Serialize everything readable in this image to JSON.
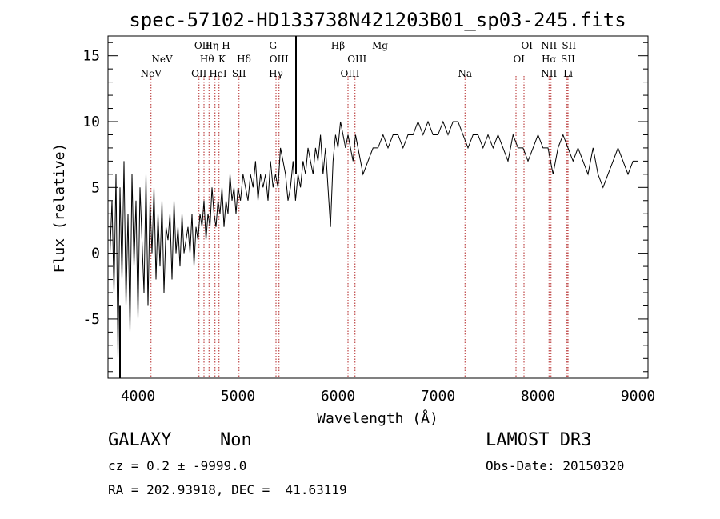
{
  "chart_data": {
    "type": "line",
    "title": "spec-57102-HD133738N421203B01_sp03-245.fits",
    "xlabel": "Wavelength (Å)",
    "ylabel": "Flux (relative)",
    "xlim": [
      3700,
      9100
    ],
    "ylim": [
      -9.5,
      16.5
    ],
    "x_ticks": [
      4000,
      5000,
      6000,
      7000,
      8000,
      9000
    ],
    "y_ticks": [
      -5,
      0,
      5,
      10,
      15
    ],
    "series": [
      {
        "x": [
          3720,
          3740,
          3760,
          3780,
          3800,
          3820,
          3840,
          3860,
          3880,
          3900,
          3920,
          3940,
          3960,
          3980,
          4000,
          4020,
          4040,
          4060,
          4080,
          4100,
          4120,
          4140,
          4160,
          4180,
          4200,
          4220,
          4240,
          4260,
          4280,
          4300,
          4320,
          4340,
          4360,
          4380,
          4400,
          4420,
          4440,
          4460,
          4480,
          4500,
          4520,
          4540,
          4560,
          4580,
          4600,
          4620,
          4640,
          4660,
          4680,
          4700,
          4720,
          4740,
          4760,
          4780,
          4800,
          4820,
          4840,
          4860,
          4880,
          4900,
          4920,
          4940,
          4960,
          4980,
          5000,
          5025,
          5050,
          5075,
          5100,
          5125,
          5150,
          5175,
          5200,
          5225,
          5250,
          5275,
          5300,
          5325,
          5350,
          5375,
          5400,
          5425,
          5450,
          5475,
          5500,
          5525,
          5550,
          5575,
          5600,
          5625,
          5650,
          5675,
          5700,
          5725,
          5750,
          5775,
          5800,
          5825,
          5850,
          5875,
          5900,
          5925,
          5950,
          5975,
          6000,
          6025,
          6050,
          6075,
          6100,
          6125,
          6150,
          6175,
          6200,
          6250,
          6300,
          6350,
          6400,
          6450,
          6500,
          6550,
          6600,
          6650,
          6700,
          6750,
          6800,
          6850,
          6900,
          6950,
          7000,
          7050,
          7100,
          7150,
          7200,
          7250,
          7300,
          7350,
          7400,
          7450,
          7500,
          7550,
          7600,
          7650,
          7700,
          7750,
          7800,
          7850,
          7900,
          7950,
          8000,
          8050,
          8100,
          8150,
          8200,
          8250,
          8300,
          8350,
          8400,
          8450,
          8500,
          8550,
          8600,
          8650,
          8700,
          8750,
          8800,
          8850,
          8900,
          8950,
          9000,
          9000
        ],
        "y": [
          0,
          4,
          -3,
          6,
          -8,
          5,
          -2,
          7,
          -4,
          3,
          -6,
          6,
          -1,
          4,
          -5,
          5,
          1,
          -3,
          6,
          -4,
          4,
          0,
          5,
          -2,
          3,
          -1,
          4,
          -3,
          2,
          1,
          3,
          -2,
          4,
          0,
          2,
          -1,
          3,
          0,
          1,
          2,
          0,
          3,
          -1,
          2,
          1,
          3,
          2,
          4,
          1,
          3,
          2,
          5,
          3,
          2,
          4,
          3,
          5,
          2,
          4,
          3,
          6,
          4,
          5,
          3,
          5,
          4,
          6,
          5,
          4,
          6,
          5,
          7,
          4,
          6,
          5,
          6,
          4,
          7,
          5,
          6,
          5,
          8,
          7,
          6,
          4,
          5,
          7,
          4,
          6,
          5,
          7,
          6,
          8,
          7,
          6,
          8,
          7,
          9,
          6,
          8,
          5,
          2,
          7,
          9,
          8,
          10,
          9,
          8,
          9,
          8,
          7,
          9,
          8,
          6,
          7,
          8,
          8,
          9,
          8,
          9,
          9,
          8,
          9,
          9,
          10,
          9,
          10,
          9,
          9,
          10,
          9,
          10,
          10,
          9,
          8,
          9,
          9,
          8,
          9,
          8,
          9,
          8,
          7,
          9,
          8,
          8,
          7,
          8,
          9,
          8,
          8,
          6,
          8,
          9,
          8,
          7,
          8,
          7,
          6,
          8,
          6,
          5,
          6,
          7,
          8,
          7,
          6,
          7,
          7,
          1
        ],
        "notes_excluded": true
      }
    ],
    "grid": false,
    "legend": "none",
    "line_color": "#000000",
    "marker_color": "#b22222",
    "vertical_marker_x": [
      4130,
      4240,
      4610,
      4660,
      4710,
      4770,
      4810,
      4880,
      4960,
      5010,
      5320,
      5380,
      5410,
      6000,
      6100,
      6170,
      6400,
      7270,
      7780,
      7860,
      8110,
      8130,
      8290,
      8300
    ],
    "spike_x": 5580,
    "spectral_lines": [
      {
        "label": "OII",
        "x": 4640,
        "row": 1
      },
      {
        "label": "Hη",
        "x": 4735,
        "row": 1
      },
      {
        "label": "H",
        "x": 4880,
        "row": 1
      },
      {
        "label": "G",
        "x": 5350,
        "row": 1
      },
      {
        "label": "Hβ",
        "x": 6000,
        "row": 1
      },
      {
        "label": "Mg",
        "x": 6420,
        "row": 1
      },
      {
        "label": "OI",
        "x": 7890,
        "row": 1
      },
      {
        "label": "NII",
        "x": 8110,
        "row": 1
      },
      {
        "label": "SII",
        "x": 8310,
        "row": 1
      },
      {
        "label": "NeV",
        "x": 4240,
        "row": 2
      },
      {
        "label": "Hθ",
        "x": 4690,
        "row": 2
      },
      {
        "label": "K",
        "x": 4840,
        "row": 2
      },
      {
        "label": "Hδ",
        "x": 5060,
        "row": 2
      },
      {
        "label": "OIII",
        "x": 5410,
        "row": 2
      },
      {
        "label": "OIII",
        "x": 6190,
        "row": 2
      },
      {
        "label": "OI",
        "x": 7810,
        "row": 2
      },
      {
        "label": "Hα",
        "x": 8110,
        "row": 2
      },
      {
        "label": "SII",
        "x": 8300,
        "row": 2
      },
      {
        "label": "NeV",
        "x": 4130,
        "row": 3
      },
      {
        "label": "OII",
        "x": 4610,
        "row": 3
      },
      {
        "label": "HeI",
        "x": 4800,
        "row": 3
      },
      {
        "label": "SII",
        "x": 5010,
        "row": 3
      },
      {
        "label": "Hγ",
        "x": 5380,
        "row": 3
      },
      {
        "label": "OIII",
        "x": 6120,
        "row": 3
      },
      {
        "label": "Na",
        "x": 7270,
        "row": 3
      },
      {
        "label": "NII",
        "x": 8110,
        "row": 3
      },
      {
        "label": "Li",
        "x": 8300,
        "row": 3
      }
    ]
  },
  "info": {
    "class": "GALAXY",
    "subclass": "Non",
    "survey": "LAMOST DR3",
    "cz": "cz = 0.2 ± -9999.0",
    "obs_date": "Obs-Date: 20150320",
    "radec": "RA = 202.93918, DEC =  41.63119"
  }
}
